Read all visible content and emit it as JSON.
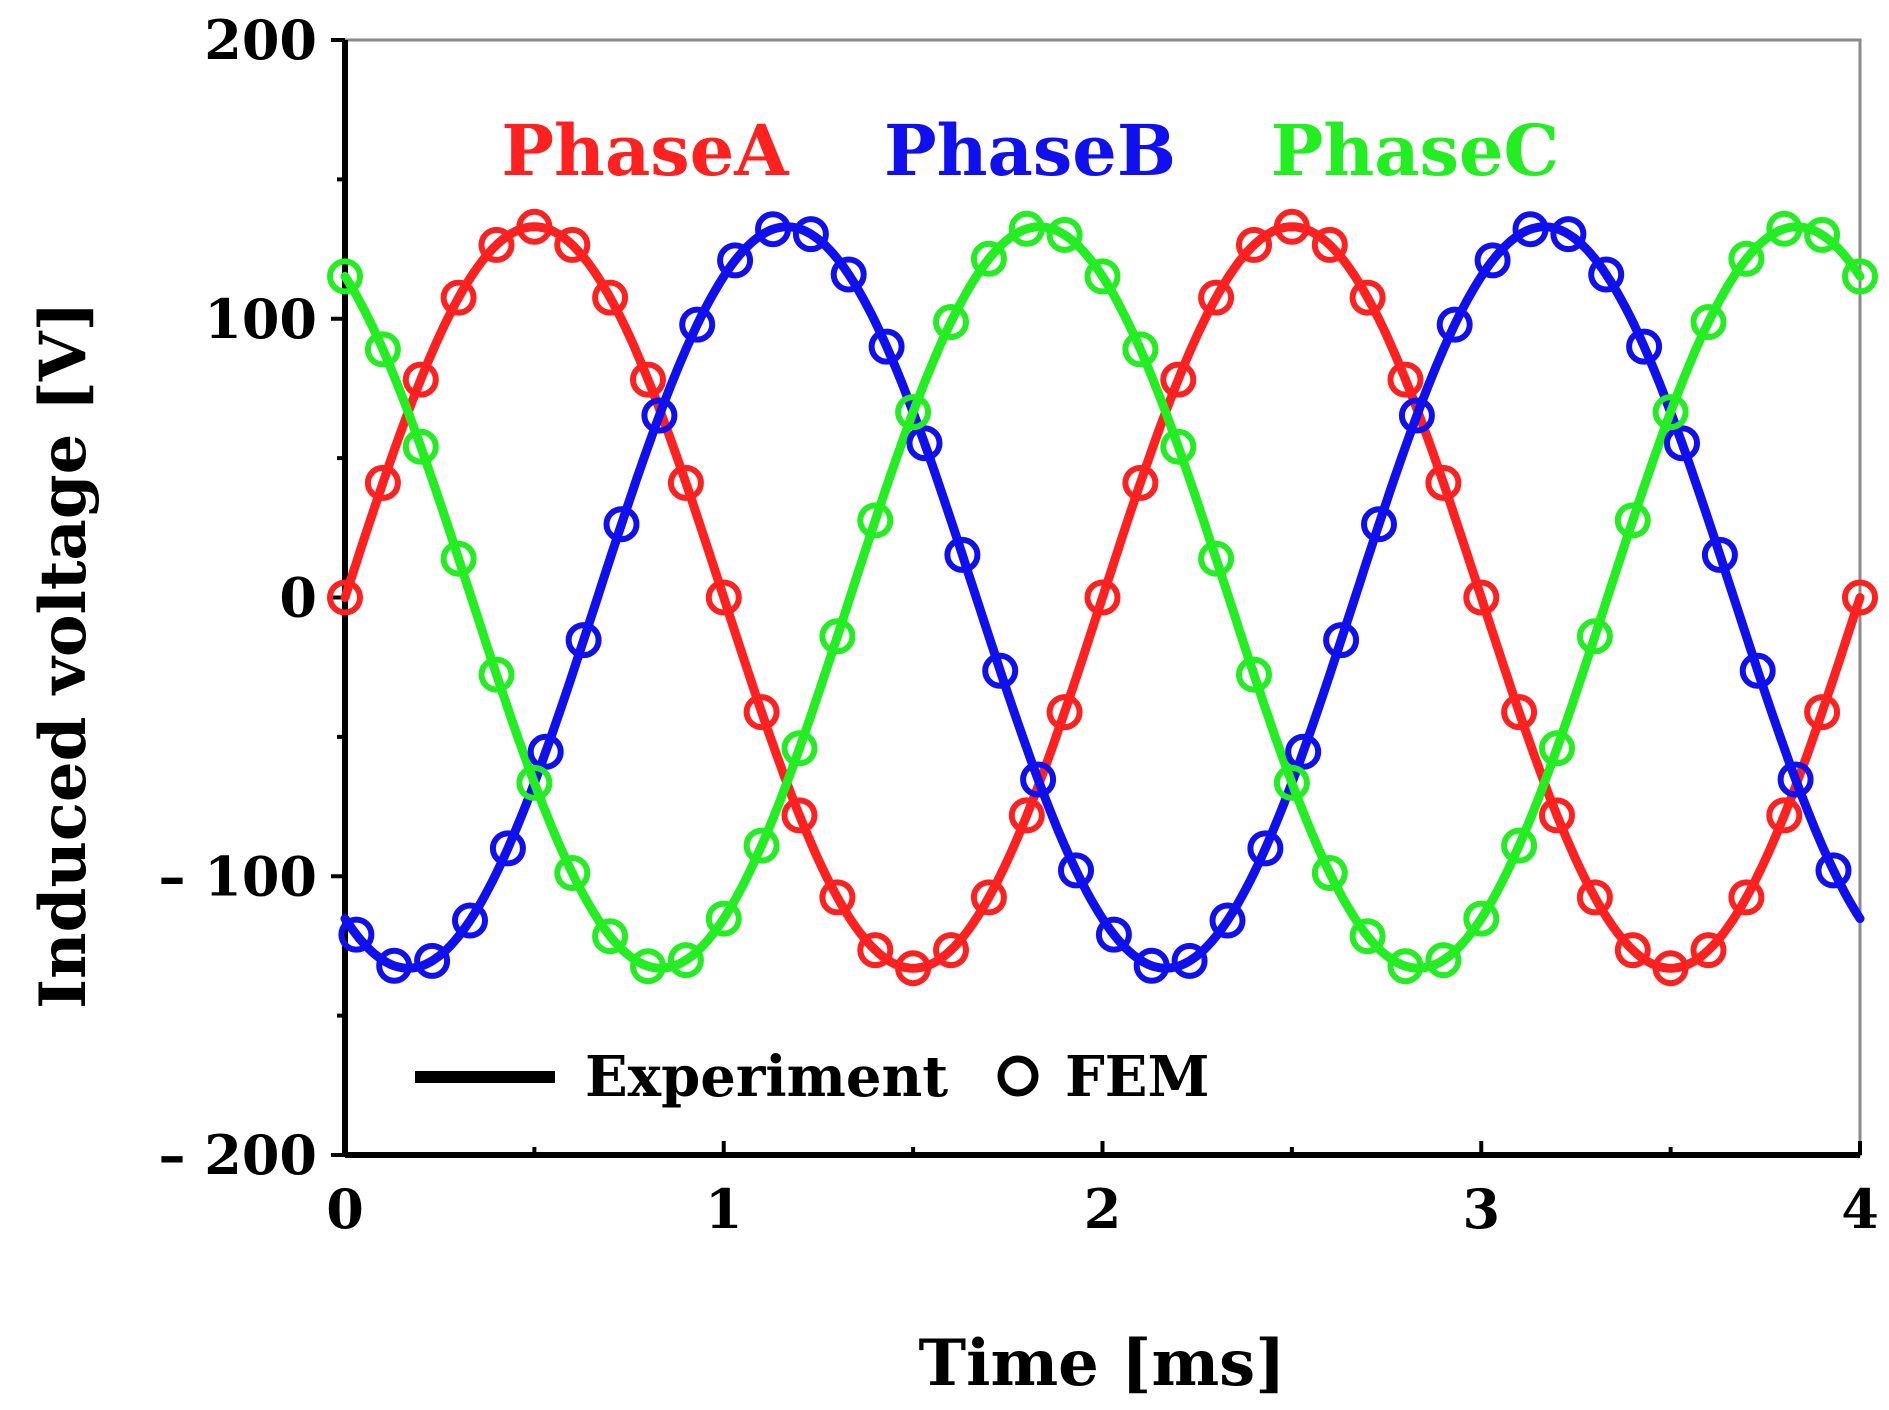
{
  "chart_data": {
    "type": "line",
    "title": "",
    "xlabel": "Time [ms]",
    "ylabel": "Induced voltage [V]",
    "xlim": [
      0,
      4
    ],
    "ylim": [
      -200,
      200
    ],
    "x_ticks": [
      0,
      1,
      2,
      3,
      4
    ],
    "x_tick_labels": [
      "0",
      "1",
      "2",
      "3",
      "4"
    ],
    "y_ticks": [
      -200,
      -100,
      0,
      100,
      200
    ],
    "y_tick_labels": [
      "– 200",
      "– 100",
      "0",
      "100",
      "200"
    ],
    "grid": false,
    "amplitude": 133,
    "period_ms": 2,
    "series": [
      {
        "name": "PhaseA",
        "color": "#ff2020",
        "phase_deg": 0,
        "fem_x_start": 0
      },
      {
        "name": "PhaseB",
        "color": "#1010ee",
        "phase_deg": -120,
        "fem_x_start": 0.03
      },
      {
        "name": "PhaseC",
        "color": "#22ee22",
        "phase_deg": 120,
        "fem_x_start": 0
      }
    ],
    "fem_x_step": 0.1,
    "legend": {
      "placement": "bottom-left",
      "entries": [
        {
          "label": "Experiment",
          "style": "line",
          "color": "#000000"
        },
        {
          "label": "FEM",
          "style": "circle",
          "color": "#000000"
        }
      ]
    }
  }
}
